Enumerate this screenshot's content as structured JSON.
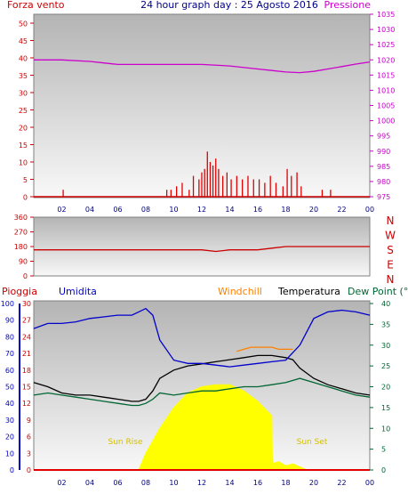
{
  "title": "24 hour graph day : 25 Agosto 2016",
  "colors": {
    "wind": "#e00000",
    "pressure": "#cc00cc",
    "direction": "#cc0000",
    "rain": "#e00000",
    "humidity": "#0000cc",
    "windchill": "#ff8000",
    "temperature": "#000000",
    "dewpoint": "#006633",
    "solar": "#ffff00",
    "sun_label": "#d4c000",
    "dir_letters": "#cc0000"
  },
  "chart_data": [
    {
      "type": "line",
      "panel": "wind-pressure",
      "left_label": "Forza vento",
      "right_label": "Pressione",
      "x_ticks": [
        "02",
        "04",
        "06",
        "08",
        "10",
        "12",
        "14",
        "16",
        "18",
        "20",
        "22",
        "00"
      ],
      "y_left_ticks": [
        "0",
        "5",
        "10",
        "15",
        "20",
        "25",
        "30",
        "35",
        "40",
        "45",
        "50"
      ],
      "y_right_ticks": [
        "975",
        "980",
        "985",
        "990",
        "995",
        "1000",
        "1005",
        "1010",
        "1015",
        "1020",
        "1025",
        "1030",
        "1035"
      ],
      "ylim_left": [
        0,
        50
      ],
      "ylim_right": [
        975,
        1035
      ],
      "series": [
        {
          "name": "Pressione",
          "axis": "right",
          "x": [
            0,
            2,
            4,
            5,
            6,
            8,
            10,
            12,
            14,
            16,
            17,
            18,
            19,
            20,
            21,
            22,
            23,
            24
          ],
          "y": [
            1020,
            1020,
            1019.5,
            1019,
            1018.5,
            1018.5,
            1018.5,
            1018.5,
            1018,
            1017,
            1016.5,
            1016,
            1015.8,
            1016.2,
            1017,
            1017.8,
            1018.6,
            1019.3
          ]
        },
        {
          "name": "Forza vento",
          "axis": "left",
          "x": [
            2.1,
            9.5,
            9.8,
            10.2,
            10.6,
            11.1,
            11.4,
            11.8,
            12.0,
            12.2,
            12.4,
            12.6,
            12.8,
            13.0,
            13.2,
            13.5,
            13.8,
            14.1,
            14.5,
            14.9,
            15.3,
            15.7,
            16.1,
            16.5,
            16.9,
            17.3,
            17.8,
            18.1,
            18.4,
            18.8,
            19.1,
            20.6,
            21.2
          ],
          "y": [
            2,
            2,
            2,
            3,
            4,
            2,
            6,
            5,
            7,
            8,
            13,
            10,
            9,
            11,
            8,
            6,
            7,
            5,
            6,
            5,
            6,
            5,
            5,
            4,
            6,
            4,
            3,
            8,
            6,
            7,
            3,
            2,
            2
          ]
        }
      ]
    },
    {
      "type": "line",
      "panel": "wind-direction",
      "y_left_ticks": [
        "0",
        "90",
        "180",
        "270",
        "360"
      ],
      "ylim": [
        0,
        360
      ],
      "dir_letters": [
        "N",
        "W",
        "S",
        "E",
        "N"
      ],
      "series": [
        {
          "name": "Direzione",
          "x": [
            0,
            3,
            6,
            9,
            12,
            13,
            14,
            15,
            16,
            17,
            18,
            20,
            22,
            24
          ],
          "y": [
            160,
            160,
            160,
            160,
            160,
            150,
            160,
            160,
            160,
            170,
            180,
            180,
            180,
            180
          ]
        }
      ]
    },
    {
      "type": "line",
      "panel": "temp-humidity",
      "labels": {
        "rain": "Pioggia",
        "humidity": "Umidita",
        "windchill": "Windchill",
        "temperature": "Temperatura",
        "dewpoint": "Dew Point (°C"
      },
      "sun_rise": "Sun Rise",
      "sun_set": "Sun Set",
      "x_ticks": [
        "02",
        "04",
        "06",
        "08",
        "10",
        "12",
        "14",
        "16",
        "18",
        "20",
        "22",
        "00"
      ],
      "y_humidity_ticks": [
        "0",
        "10",
        "20",
        "30",
        "40",
        "50",
        "60",
        "70",
        "80",
        "90",
        "100"
      ],
      "y_rain_ticks": [
        "0",
        "3",
        "6",
        "9",
        "12",
        "15",
        "18",
        "21",
        "24",
        "27",
        "30"
      ],
      "y_temp_ticks": [
        "0",
        "5",
        "10",
        "15",
        "20",
        "25",
        "30",
        "35",
        "40"
      ],
      "ylim_humidity": [
        0,
        100
      ],
      "ylim_temp": [
        0,
        40
      ],
      "series": [
        {
          "name": "Umidita",
          "axis": "humidity",
          "x": [
            0,
            1,
            2,
            3,
            4,
            5,
            6,
            7,
            7.5,
            8,
            8.5,
            9,
            10,
            11,
            12,
            13,
            14,
            15,
            16,
            17,
            18,
            19,
            20,
            21,
            22,
            23,
            24
          ],
          "y": [
            85,
            88,
            88,
            89,
            91,
            92,
            93,
            93,
            95,
            97,
            93,
            78,
            66,
            64,
            64,
            63,
            62,
            63,
            64,
            65,
            66,
            75,
            91,
            95,
            96,
            95,
            93
          ]
        },
        {
          "name": "Temperatura",
          "axis": "temp",
          "x": [
            0,
            1,
            2,
            3,
            4,
            5,
            6,
            7,
            7.5,
            8,
            8.5,
            9,
            10,
            11,
            12,
            13,
            14,
            15,
            16,
            17,
            18,
            18.5,
            19,
            20,
            21,
            22,
            23,
            24
          ],
          "y": [
            21,
            20,
            18.5,
            18,
            18,
            17.5,
            17,
            16.5,
            16.5,
            17,
            19,
            22,
            24,
            25,
            25.5,
            26,
            26.5,
            27,
            27.5,
            27.5,
            27,
            26.5,
            24.5,
            22,
            20.5,
            19.5,
            18.5,
            18
          ]
        },
        {
          "name": "Windchill",
          "axis": "temp",
          "x": [
            14.5,
            15,
            15.5,
            16,
            16.5,
            17,
            17.5,
            18,
            18.5
          ],
          "y": [
            28.5,
            29,
            29.5,
            29.5,
            29.5,
            29.5,
            29,
            29,
            29
          ]
        },
        {
          "name": "Dew Point",
          "axis": "temp",
          "x": [
            0,
            1,
            2,
            3,
            4,
            5,
            6,
            7,
            7.5,
            8,
            8.5,
            9,
            10,
            11,
            12,
            13,
            14,
            15,
            16,
            17,
            18,
            19,
            20,
            21,
            22,
            23,
            24
          ],
          "y": [
            18,
            18.5,
            18,
            17.5,
            17,
            16.5,
            16,
            15.5,
            15.5,
            16,
            17,
            18.5,
            18,
            18.5,
            19,
            19,
            19.5,
            20,
            20,
            20.5,
            21,
            22,
            21,
            20,
            19,
            18,
            17.5
          ]
        },
        {
          "name": "Solar",
          "axis": "temp",
          "x": [
            7.5,
            8,
            9,
            10,
            11,
            12,
            13,
            14,
            15,
            16,
            17,
            17.05,
            17.5,
            18,
            18.5,
            19.5
          ],
          "y": [
            0,
            4,
            10,
            15,
            18.5,
            20,
            20.5,
            20.5,
            19,
            16.5,
            13,
            1.5,
            2,
            1,
            1.5,
            0
          ]
        },
        {
          "name": "Pioggia",
          "axis": "rain",
          "x": [
            0,
            24
          ],
          "y": [
            0,
            0
          ]
        }
      ]
    }
  ]
}
